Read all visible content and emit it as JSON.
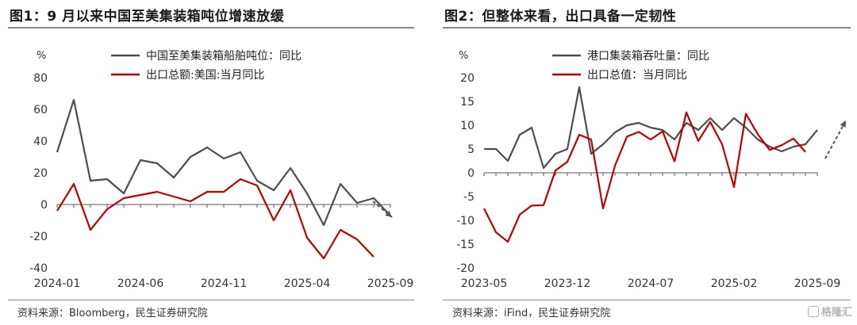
{
  "chart_data": [
    {
      "type": "line",
      "title": "图1：9 月以来中国至美集装箱吨位增速放缓",
      "ylabel": "%",
      "ylim": [
        -40,
        80
      ],
      "yticks": [
        80,
        60,
        40,
        20,
        0,
        -20,
        -40
      ],
      "x_range": [
        "2024-01",
        "2025-09"
      ],
      "xticks": [
        "2024-01",
        "2024-06",
        "2024-11",
        "2025-04",
        "2025-09"
      ],
      "grid": false,
      "legend_position": "top-right",
      "series": [
        {
          "name": "中国至美集装箱船舶吨位：同比",
          "color": "#4d4d4d",
          "x": [
            "2024-01",
            "2024-02",
            "2024-03",
            "2024-04",
            "2024-05",
            "2024-06",
            "2024-07",
            "2024-08",
            "2024-09",
            "2024-10",
            "2024-11",
            "2024-12",
            "2025-01",
            "2025-02",
            "2025-03",
            "2025-04",
            "2025-05",
            "2025-06",
            "2025-07",
            "2025-08",
            "2025-09"
          ],
          "values": [
            33,
            66,
            15,
            16,
            7,
            28,
            26,
            17,
            30,
            36,
            29,
            33,
            15,
            9,
            23,
            7,
            -13,
            13,
            1,
            4,
            -7
          ]
        },
        {
          "name": "出口总额:美国:当月同比",
          "color": "#c00000",
          "x": [
            "2024-01",
            "2024-02",
            "2024-03",
            "2024-04",
            "2024-05",
            "2024-06",
            "2024-07",
            "2024-08",
            "2024-09",
            "2024-10",
            "2024-11",
            "2024-12",
            "2025-01",
            "2025-02",
            "2025-03",
            "2025-04",
            "2025-05",
            "2025-06",
            "2025-07",
            "2025-08"
          ],
          "values": [
            -4,
            13,
            -16,
            -3,
            4,
            6,
            8,
            5,
            2,
            8,
            8,
            16,
            12,
            -10,
            9,
            -21,
            -34,
            -16,
            -22,
            -33
          ]
        }
      ],
      "annotations": [
        {
          "type": "dashed-arrow",
          "direction": "down",
          "color": "#555555"
        }
      ],
      "source": "资料来源：Bloomberg，民生证券研究院"
    },
    {
      "type": "line",
      "title": "图2：但整体来看，出口具备一定韧性",
      "ylabel": "%",
      "ylim": [
        -20,
        20
      ],
      "yticks": [
        20,
        15,
        10,
        5,
        0,
        -5,
        -10,
        -15,
        -20
      ],
      "x_range": [
        "2023-05",
        "2025-09"
      ],
      "xticks": [
        "2023-05",
        "2023-12",
        "2024-07",
        "2025-02",
        "2025-09"
      ],
      "grid": false,
      "legend_position": "top-right",
      "series": [
        {
          "name": "港口集装箱吞吐量：同比",
          "color": "#4d4d4d",
          "x": [
            "2023-05",
            "2023-06",
            "2023-07",
            "2023-08",
            "2023-09",
            "2023-10",
            "2023-11",
            "2023-12",
            "2024-01",
            "2024-02",
            "2024-03",
            "2024-04",
            "2024-05",
            "2024-06",
            "2024-07",
            "2024-08",
            "2024-09",
            "2024-10",
            "2024-11",
            "2024-12",
            "2025-01",
            "2025-02",
            "2025-03",
            "2025-04",
            "2025-05",
            "2025-06",
            "2025-07",
            "2025-08",
            "2025-09"
          ],
          "values": [
            5,
            5,
            2.5,
            8,
            9.5,
            1,
            4,
            5,
            18,
            4,
            6,
            8.5,
            10,
            10.5,
            9.5,
            9,
            7,
            10.5,
            9,
            11.5,
            9,
            11.5,
            9.5,
            7,
            5.5,
            4.5,
            5.5,
            6,
            9
          ]
        },
        {
          "name": "出口总值：当月同比",
          "color": "#c00000",
          "x": [
            "2023-05",
            "2023-06",
            "2023-07",
            "2023-08",
            "2023-09",
            "2023-10",
            "2023-11",
            "2023-12",
            "2024-01",
            "2024-02",
            "2024-03",
            "2024-04",
            "2024-05",
            "2024-06",
            "2024-07",
            "2024-08",
            "2024-09",
            "2024-10",
            "2024-11",
            "2024-12",
            "2025-01",
            "2025-02",
            "2025-03",
            "2025-04",
            "2025-05",
            "2025-06",
            "2025-07",
            "2025-08"
          ],
          "values": [
            -7.5,
            -12.5,
            -14.5,
            -8.8,
            -6.9,
            -6.8,
            0.5,
            2.3,
            8,
            7,
            -7.5,
            1.5,
            7.6,
            8.6,
            7,
            8.7,
            2.4,
            12.7,
            6.7,
            10.7,
            6,
            -3,
            12.4,
            8.1,
            4.8,
            5.8,
            7.2,
            4.4
          ]
        }
      ],
      "annotations": [
        {
          "type": "dashed-arrow",
          "direction": "up",
          "color": "#555555"
        }
      ],
      "source": "资料来源：iFind，民生证券研究院"
    }
  ],
  "watermark": "格隆汇"
}
